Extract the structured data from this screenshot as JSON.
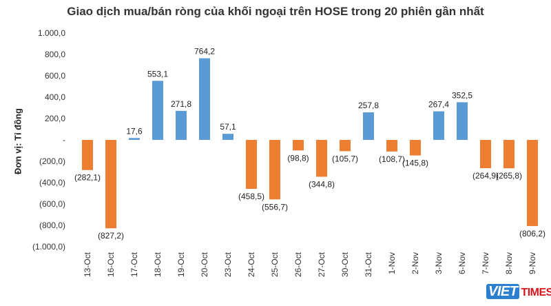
{
  "chart_data": {
    "type": "bar",
    "title": "Giao dịch mua/bán ròng của khối ngoại trên HOSE trong 20 phiên gần nhất",
    "ylabel": "Đơn vị: Tỉ đồng",
    "xlabel": "",
    "ylim": [
      -1000,
      1000
    ],
    "yticks": [
      1000,
      800,
      600,
      400,
      200,
      0,
      -200,
      -400,
      -600,
      -800,
      -1000
    ],
    "ytick_labels": [
      "1.000,0",
      "800,0",
      "600,0",
      "400,0",
      "200,0",
      "-",
      "(200,0)",
      "(400,0)",
      "(600,0)",
      "(800,0)",
      "(1.000,0)"
    ],
    "categories": [
      "13-Oct",
      "16-Oct",
      "17-Oct",
      "18-Oct",
      "19-Oct",
      "20-Oct",
      "23-Oct",
      "24-Oct",
      "25-Oct",
      "26-Oct",
      "27-Oct",
      "30-Oct",
      "31-Oct",
      "1-Nov",
      "2-Nov",
      "3-Nov",
      "6-Nov",
      "7-Nov",
      "8-Nov",
      "9-Nov"
    ],
    "values": [
      -282.1,
      -827.2,
      17.6,
      553.1,
      271.8,
      764.2,
      57.1,
      -458.5,
      -556.7,
      -98.8,
      -344.8,
      -105.7,
      257.8,
      -108.7,
      -145.8,
      267.4,
      352.5,
      -264.9,
      -265.8,
      -806.2
    ],
    "data_labels": [
      "(282,1)",
      "(827,2)",
      "17,6",
      "553,1",
      "271,8",
      "764,2",
      "57,1",
      "(458,5)",
      "(556,7)",
      "(98,8)",
      "(344,8)",
      "(105,7)",
      "257,8",
      "(108,7)",
      "(145,8)",
      "267,4",
      "352,5",
      "(264,9)",
      "(265,8)",
      "(806,2)"
    ],
    "colors": {
      "positive": "#5b9bd5",
      "negative": "#ed7d31"
    },
    "grid": false,
    "legend": "none"
  },
  "watermark": {
    "brand_left": "VIET",
    "brand_right": "TIMES"
  }
}
